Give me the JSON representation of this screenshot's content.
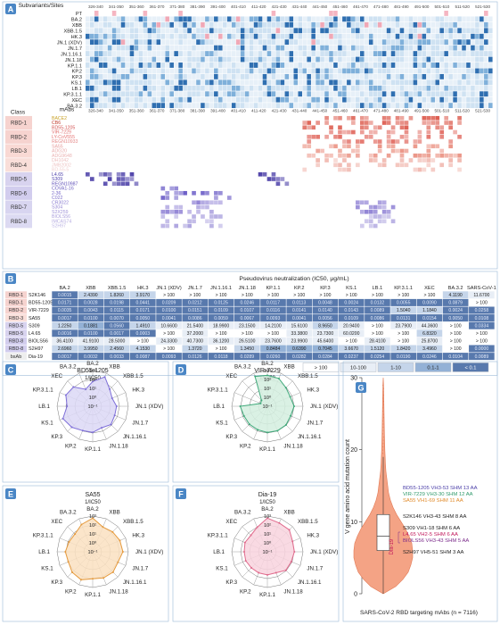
{
  "panel_a": {
    "badge": "A",
    "subvariant_header": "Subvariants/Sites",
    "class_header": "Class",
    "mabs_header": "mAbs",
    "subvariants": [
      "PT",
      "BA.2",
      "XBB",
      "XBB.1.5",
      "HK.3",
      "JN.1 (XDV)",
      "JN.1.7",
      "JN.1.16.1",
      "JN.1.18",
      "KP.1.1",
      "KP.2",
      "KP.3",
      "KS.1",
      "LB.1",
      "KP.3.1.1",
      "XEC",
      "BA.3.2"
    ],
    "site_ranges": [
      "326-340",
      "341-350",
      "351-360",
      "361-370",
      "371-380",
      "381-390",
      "391-400",
      "401-410",
      "411-420",
      "421-430",
      "431-440",
      "441-450",
      "451-460",
      "461-470",
      "471-480",
      "481-490",
      "491-500",
      "501-510",
      "511-520",
      "521-530"
    ],
    "classes": [
      {
        "label": "RBD-1",
        "mabs": [
          "BA.2",
          "XBB",
          "JN.1.7",
          "KP.1.1"
        ]
      },
      {
        "label": "RBD-2",
        "mabs": [
          "XBB.1.5",
          "JN.1.16.1",
          "KP.2"
        ]
      },
      {
        "label": "RBD-3",
        "mabs": [
          "HK.3",
          "JN.1.18",
          "KP.3"
        ]
      },
      {
        "label": "RBD-4",
        "mabs": [
          "BA.2",
          "KS.1",
          "LB.1",
          "XEC",
          "PT"
        ]
      },
      {
        "label": "RBD-5",
        "mabs": [
          "L4.65",
          "S309",
          "REGN10987"
        ]
      },
      {
        "label": "RBD-6",
        "mabs": [
          "COVA1-16",
          "2-36",
          "C022"
        ]
      },
      {
        "label": "RBD-7",
        "mabs": [
          "CR3022",
          "S304",
          "S2X259"
        ]
      },
      {
        "label": "RBD-8",
        "mabs": [
          "BIOLS56",
          "IMCAS74",
          "S2H97"
        ]
      }
    ],
    "mab_list": [
      "BACE2",
      "CB6",
      "BD55-1205",
      "VIR-7229",
      "LY-CoV555",
      "REGN10933",
      "SA55",
      "ADG20",
      "ADG9648",
      "DH1042",
      "JMB2002",
      "BD-55-5",
      "L4.65",
      "S309",
      "REGN10987",
      "COVA1-16",
      "2-36",
      "C022",
      "CR3022",
      "S304",
      "S2X259",
      "BIOLS56",
      "IMCAS74",
      "S2H97"
    ]
  },
  "panel_b": {
    "badge": "B",
    "title": "Pseudovirus neutralization (IC50, μg/mL)",
    "columns": [
      "BA.2",
      "XBB",
      "XBB.1.5",
      "HK.3",
      "JN.1 (XDV)",
      "JN.1.7",
      "JN.1.16.1",
      "JN.1.18",
      "KP.1.1",
      "KP.2",
      "KP.3",
      "KS.1",
      "LB.1",
      "KP.3.1.1",
      "XEC",
      "BA.3.2",
      "SARS-CoV-1"
    ],
    "rows": [
      {
        "cls": "RBD-1",
        "mab": "S2K146",
        "values": [
          "0.0015",
          "2.4390",
          "1.8260",
          "3.9170",
          "> 100",
          "> 100",
          "> 100",
          "> 100",
          "> 100",
          "> 100",
          "> 100",
          "> 100",
          "> 100",
          "> 100",
          "> 100",
          "4.1190",
          "11.6700"
        ]
      },
      {
        "cls": "RBD-1",
        "mab": "BD55-1205",
        "values": [
          "0.0171",
          "0.0028",
          "0.0198",
          "0.0441",
          "0.0209",
          "0.0212",
          "0.0125",
          "0.0246",
          "0.0117",
          "0.0113",
          "0.0048",
          "0.0024",
          "0.0132",
          "0.0055",
          "0.0090",
          "0.0879",
          "> 100"
        ]
      },
      {
        "cls": "RBD-2",
        "mab": "VIR-7229",
        "values": [
          "0.0035",
          "0.0043",
          "0.0115",
          "0.0171",
          "0.0100",
          "0.0151",
          "0.0109",
          "0.0107",
          "0.0116",
          "0.0141",
          "0.0140",
          "0.0143",
          "0.0089",
          "1.5040",
          "1.1840",
          "0.0024",
          "0.0258"
        ]
      },
      {
        "cls": "RBD-3",
        "mab": "SA55",
        "values": [
          "0.0017",
          "0.0100",
          "0.0070",
          "0.0050",
          "0.0041",
          "0.0086",
          "0.0059",
          "0.0067",
          "0.0093",
          "0.0041",
          "0.0056",
          "0.0109",
          "0.0086",
          "0.0131",
          "0.0154",
          "0.0050",
          "0.0108"
        ]
      },
      {
        "cls": "RBD-5",
        "mab": "S309",
        "values": [
          "1.2250",
          "0.1881",
          "0.0560",
          "1.4910",
          "10.6600",
          "21.5400",
          "18.9900",
          "23.1500",
          "14.2100",
          "15.6100",
          "8.9650",
          "20.9400",
          "> 100",
          "23.7900",
          "44.3600",
          "> 100",
          "0.0334"
        ]
      },
      {
        "cls": "RBD-5",
        "mab": "L4.65",
        "values": [
          "0.0016",
          "0.0100",
          "0.0017",
          "0.0003",
          "> 100",
          "37.2000",
          "> 100",
          "> 100",
          "> 100",
          "33.3800",
          "23.7300",
          "60.0200",
          "> 100",
          "> 100",
          "6.8320",
          "> 100",
          "> 100"
        ]
      },
      {
        "cls": "RBD-8",
        "mab": "BIOLS56",
        "values": [
          "36.4100",
          "41.9100",
          "28.5000",
          "> 100",
          "24.3300",
          "40.7300",
          "36.1200",
          "26.5100",
          "23.7600",
          "23.9900",
          "45.6400",
          "> 100",
          "28.4100",
          "> 100",
          "25.8700",
          "> 100",
          "> 100"
        ]
      },
      {
        "cls": "RBD-8",
        "mab": "S2H97",
        "values": [
          "2.6960",
          "3.9950",
          "2.4560",
          "4.1530",
          "> 100",
          "1.3720",
          "> 100",
          "1.3450",
          "0.8484",
          "0.6390",
          "0.7045",
          "3.6670",
          "1.5120",
          "1.8420",
          "3.4960",
          "> 100",
          "0.0000"
        ]
      },
      {
        "cls": "bsAb",
        "mab": "Dia-19",
        "values": [
          "0.0017",
          "0.0032",
          "0.0033",
          "0.0087",
          "0.0093",
          "0.0126",
          "0.0118",
          "0.0289",
          "0.0260",
          "0.0282",
          "0.0284",
          "0.0237",
          "0.0254",
          "0.0190",
          "0.0246",
          "0.0104",
          "0.0089"
        ]
      }
    ],
    "legend": [
      "> 100",
      "10-100",
      "1-10",
      "0.1-1",
      "< 0.1"
    ]
  },
  "radars": [
    {
      "badge": "C",
      "title": "BD55-1205",
      "subtitle": "1/IC50",
      "color": "#7e6fd8",
      "fill": "#dcd8f6",
      "axes": [
        "BA.2",
        "XBB",
        "XBB.1.5",
        "HK.3",
        "JN.1 (XDV)",
        "JN.1.7",
        "JN.1.16.1",
        "JN.1.18",
        "KP.1.1",
        "KP.2",
        "KP.3",
        "KS.1",
        "LB.1",
        "KP.3.1.1",
        "XEC",
        "BA.3.2"
      ],
      "ticks": [
        "10³",
        "10²",
        "10¹",
        "10⁰",
        "10⁻¹"
      ],
      "values": [
        1.77,
        2.55,
        1.7,
        1.36,
        1.68,
        1.67,
        1.9,
        1.61,
        1.93,
        1.95,
        2.32,
        2.62,
        1.88,
        2.26,
        2.05,
        1.06
      ]
    },
    {
      "badge": "D",
      "title": "VIR-7229",
      "subtitle": "1/IC50",
      "color": "#3fa97a",
      "fill": "#d3eedf",
      "axes": [
        "BA.2",
        "XBB",
        "XBB.1.5",
        "HK.3",
        "JN.1 (XDV)",
        "JN.1.7",
        "JN.1.16.1",
        "JN.1.18",
        "KP.1.1",
        "KP.2",
        "KP.3",
        "KS.1",
        "LB.1",
        "KP.3.1.1",
        "XEC",
        "BA.3.2"
      ],
      "ticks": [
        "10³",
        "10²",
        "10¹",
        "10⁰",
        "10⁻¹"
      ],
      "values": [
        2.46,
        2.37,
        1.94,
        1.77,
        2.0,
        1.82,
        1.96,
        1.97,
        1.94,
        1.85,
        1.85,
        1.84,
        2.05,
        -0.18,
        -0.07,
        2.62
      ]
    },
    {
      "badge": "E",
      "title": "SA55",
      "subtitle": "1/IC50",
      "color": "#e59a3d",
      "fill": "#fae1c1",
      "axes": [
        "BA.2",
        "XBB",
        "XBB.1.5",
        "HK.3",
        "JN.1 (XDV)",
        "JN.1.7",
        "JN.1.16.1",
        "JN.1.18",
        "KP.1.1",
        "KP.2",
        "KP.3",
        "KS.1",
        "LB.1",
        "KP.3.1.1",
        "XEC",
        "BA.3.2"
      ],
      "ticks": [
        "10³",
        "10²",
        "10¹",
        "10⁰",
        "10⁻¹"
      ],
      "values": [
        2.77,
        2.0,
        2.15,
        2.3,
        2.39,
        2.07,
        2.23,
        2.17,
        2.03,
        2.39,
        2.25,
        1.96,
        2.07,
        1.88,
        1.81,
        2.3
      ]
    },
    {
      "badge": "F",
      "title": "Dia-19",
      "subtitle": "1/IC50",
      "color": "#e06a8c",
      "fill": "#f8d4de",
      "axes": [
        "BA.2",
        "XBB",
        "XBB.1.5",
        "HK.3",
        "JN.1 (XDV)",
        "JN.1.7",
        "JN.1.16.1",
        "JN.1.18",
        "KP.1.1",
        "KP.2",
        "KP.3",
        "KS.1",
        "LB.1",
        "KP.3.1.1",
        "XEC",
        "BA.3.2"
      ],
      "ticks": [
        "10³",
        "10²",
        "10¹",
        "10⁰",
        "10⁻¹"
      ],
      "values": [
        2.77,
        2.49,
        2.48,
        2.06,
        2.03,
        1.9,
        1.93,
        1.54,
        1.59,
        1.55,
        1.55,
        1.63,
        1.6,
        1.72,
        1.61,
        1.98
      ]
    }
  ],
  "violin": {
    "badge": "G",
    "ylabel": "V gene amino acid mutation count",
    "xlabel": "SARS-CoV-2 RBD targeting mAbs (n = 7116)",
    "yticks": [
      "0",
      "10",
      "20",
      "30"
    ],
    "inner_label": "Dia-19",
    "annotations": [
      {
        "text": "BD55-1205 VH3-53 SHM 13 AA",
        "value": 13,
        "color": "#4b3fa8"
      },
      {
        "text": "VIR-7229 VH3-30 SHM 12 AA",
        "value": 12,
        "color": "#2f9a6b"
      },
      {
        "text": "SA55 VH1-69 SHM 11 AA",
        "value": 11,
        "color": "#e08a2a"
      },
      {
        "text": "S2K146 VH3-43 SHM 8 AA",
        "value": 8,
        "color": "#222222"
      },
      {
        "text": "S309 VH1-18 SHM 6 AA",
        "value": 6,
        "color": "#222222"
      },
      {
        "text": "L4.65 VH2-5 SHM 6 AA",
        "value": 6,
        "color": "#c2185b"
      },
      {
        "text": "BIOLS56 VH3-43 SHM 5 AA",
        "value": 5,
        "color": "#7a2a8a"
      },
      {
        "text": "S2H97 VH5-51 SHM 3 AA",
        "value": 3,
        "color": "#222222"
      }
    ]
  }
}
